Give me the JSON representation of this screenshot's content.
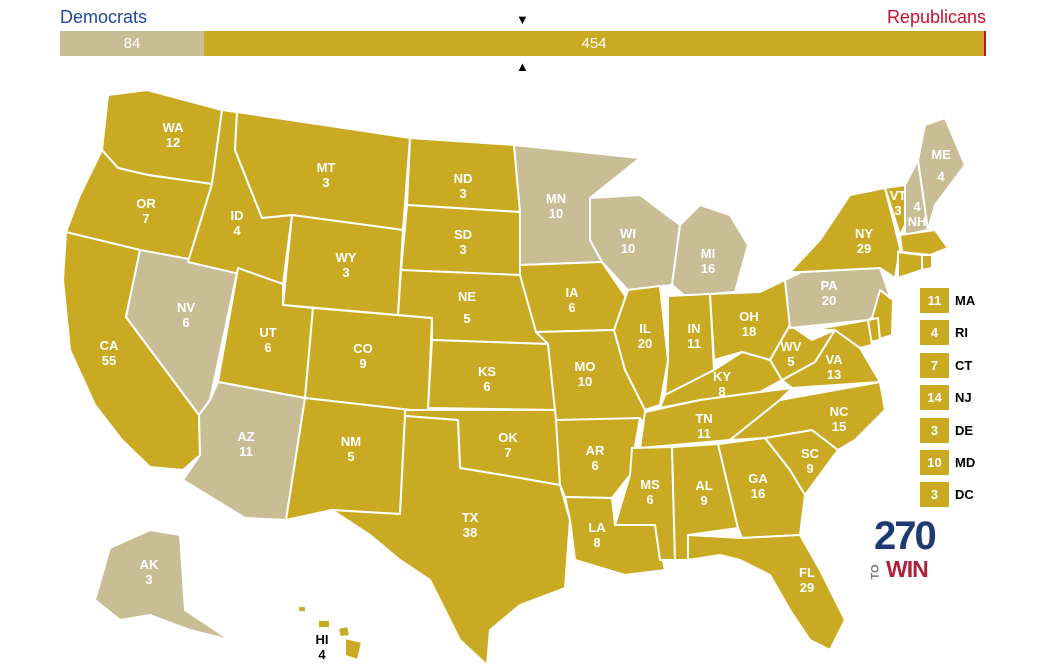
{
  "header": {
    "dem_label": "Democrats",
    "rep_label": "Republicans",
    "dem_total": "84",
    "rep_total": "454",
    "marker_top": "▼",
    "marker_bottom": "▲"
  },
  "colors": {
    "republican": "#cbaa23",
    "democrat": "#c9bd96",
    "border": "#ffffff"
  },
  "states": {
    "WA": {
      "abbr": "WA",
      "ev": "12",
      "party": "R"
    },
    "OR": {
      "abbr": "OR",
      "ev": "7",
      "party": "R"
    },
    "CA": {
      "abbr": "CA",
      "ev": "55",
      "party": "R"
    },
    "NV": {
      "abbr": "NV",
      "ev": "6",
      "party": "D"
    },
    "ID": {
      "abbr": "ID",
      "ev": "4",
      "party": "R"
    },
    "MT": {
      "abbr": "MT",
      "ev": "3",
      "party": "R"
    },
    "WY": {
      "abbr": "WY",
      "ev": "3",
      "party": "R"
    },
    "UT": {
      "abbr": "UT",
      "ev": "6",
      "party": "R"
    },
    "AZ": {
      "abbr": "AZ",
      "ev": "11",
      "party": "D"
    },
    "CO": {
      "abbr": "CO",
      "ev": "9",
      "party": "R"
    },
    "NM": {
      "abbr": "NM",
      "ev": "5",
      "party": "R"
    },
    "ND": {
      "abbr": "ND",
      "ev": "3",
      "party": "R"
    },
    "SD": {
      "abbr": "SD",
      "ev": "3",
      "party": "R"
    },
    "NE": {
      "abbr": "NE",
      "ev": "5",
      "party": "R"
    },
    "KS": {
      "abbr": "KS",
      "ev": "6",
      "party": "R"
    },
    "OK": {
      "abbr": "OK",
      "ev": "7",
      "party": "R"
    },
    "TX": {
      "abbr": "TX",
      "ev": "38",
      "party": "R"
    },
    "MN": {
      "abbr": "MN",
      "ev": "10",
      "party": "D"
    },
    "IA": {
      "abbr": "IA",
      "ev": "6",
      "party": "R"
    },
    "MO": {
      "abbr": "MO",
      "ev": "10",
      "party": "R"
    },
    "AR": {
      "abbr": "AR",
      "ev": "6",
      "party": "R"
    },
    "LA": {
      "abbr": "LA",
      "ev": "8",
      "party": "R"
    },
    "WI": {
      "abbr": "WI",
      "ev": "10",
      "party": "D"
    },
    "IL": {
      "abbr": "IL",
      "ev": "20",
      "party": "R"
    },
    "MI": {
      "abbr": "MI",
      "ev": "16",
      "party": "D"
    },
    "IN": {
      "abbr": "IN",
      "ev": "11",
      "party": "R"
    },
    "OH": {
      "abbr": "OH",
      "ev": "18",
      "party": "R"
    },
    "KY": {
      "abbr": "KY",
      "ev": "8",
      "party": "R"
    },
    "TN": {
      "abbr": "TN",
      "ev": "11",
      "party": "R"
    },
    "MS": {
      "abbr": "MS",
      "ev": "6",
      "party": "R"
    },
    "AL": {
      "abbr": "AL",
      "ev": "9",
      "party": "R"
    },
    "GA": {
      "abbr": "GA",
      "ev": "16",
      "party": "R"
    },
    "FL": {
      "abbr": "FL",
      "ev": "29",
      "party": "R"
    },
    "SC": {
      "abbr": "SC",
      "ev": "9",
      "party": "R"
    },
    "NC": {
      "abbr": "NC",
      "ev": "15",
      "party": "R"
    },
    "VA": {
      "abbr": "VA",
      "ev": "13",
      "party": "R"
    },
    "WV": {
      "abbr": "WV",
      "ev": "5",
      "party": "R"
    },
    "PA": {
      "abbr": "PA",
      "ev": "20",
      "party": "D"
    },
    "NY": {
      "abbr": "NY",
      "ev": "29",
      "party": "R"
    },
    "VT": {
      "abbr": "VT",
      "ev": "3",
      "party": "R"
    },
    "NH": {
      "abbr": "NH",
      "ev": "4",
      "party": "D"
    },
    "ME": {
      "abbr": "ME",
      "ev": "4",
      "party": "D"
    },
    "AK": {
      "abbr": "AK",
      "ev": "3",
      "party": "D"
    },
    "HI": {
      "abbr": "HI",
      "ev": "4",
      "party": "R"
    }
  },
  "small_states": [
    {
      "abbr": "MA",
      "ev": "11",
      "party": "R"
    },
    {
      "abbr": "RI",
      "ev": "4",
      "party": "R"
    },
    {
      "abbr": "CT",
      "ev": "7",
      "party": "R"
    },
    {
      "abbr": "NJ",
      "ev": "14",
      "party": "R"
    },
    {
      "abbr": "DE",
      "ev": "3",
      "party": "R"
    },
    {
      "abbr": "MD",
      "ev": "10",
      "party": "R"
    },
    {
      "abbr": "DC",
      "ev": "3",
      "party": "R"
    }
  ],
  "logo": {
    "number": "270",
    "to": "TO",
    "win": "WIN"
  }
}
